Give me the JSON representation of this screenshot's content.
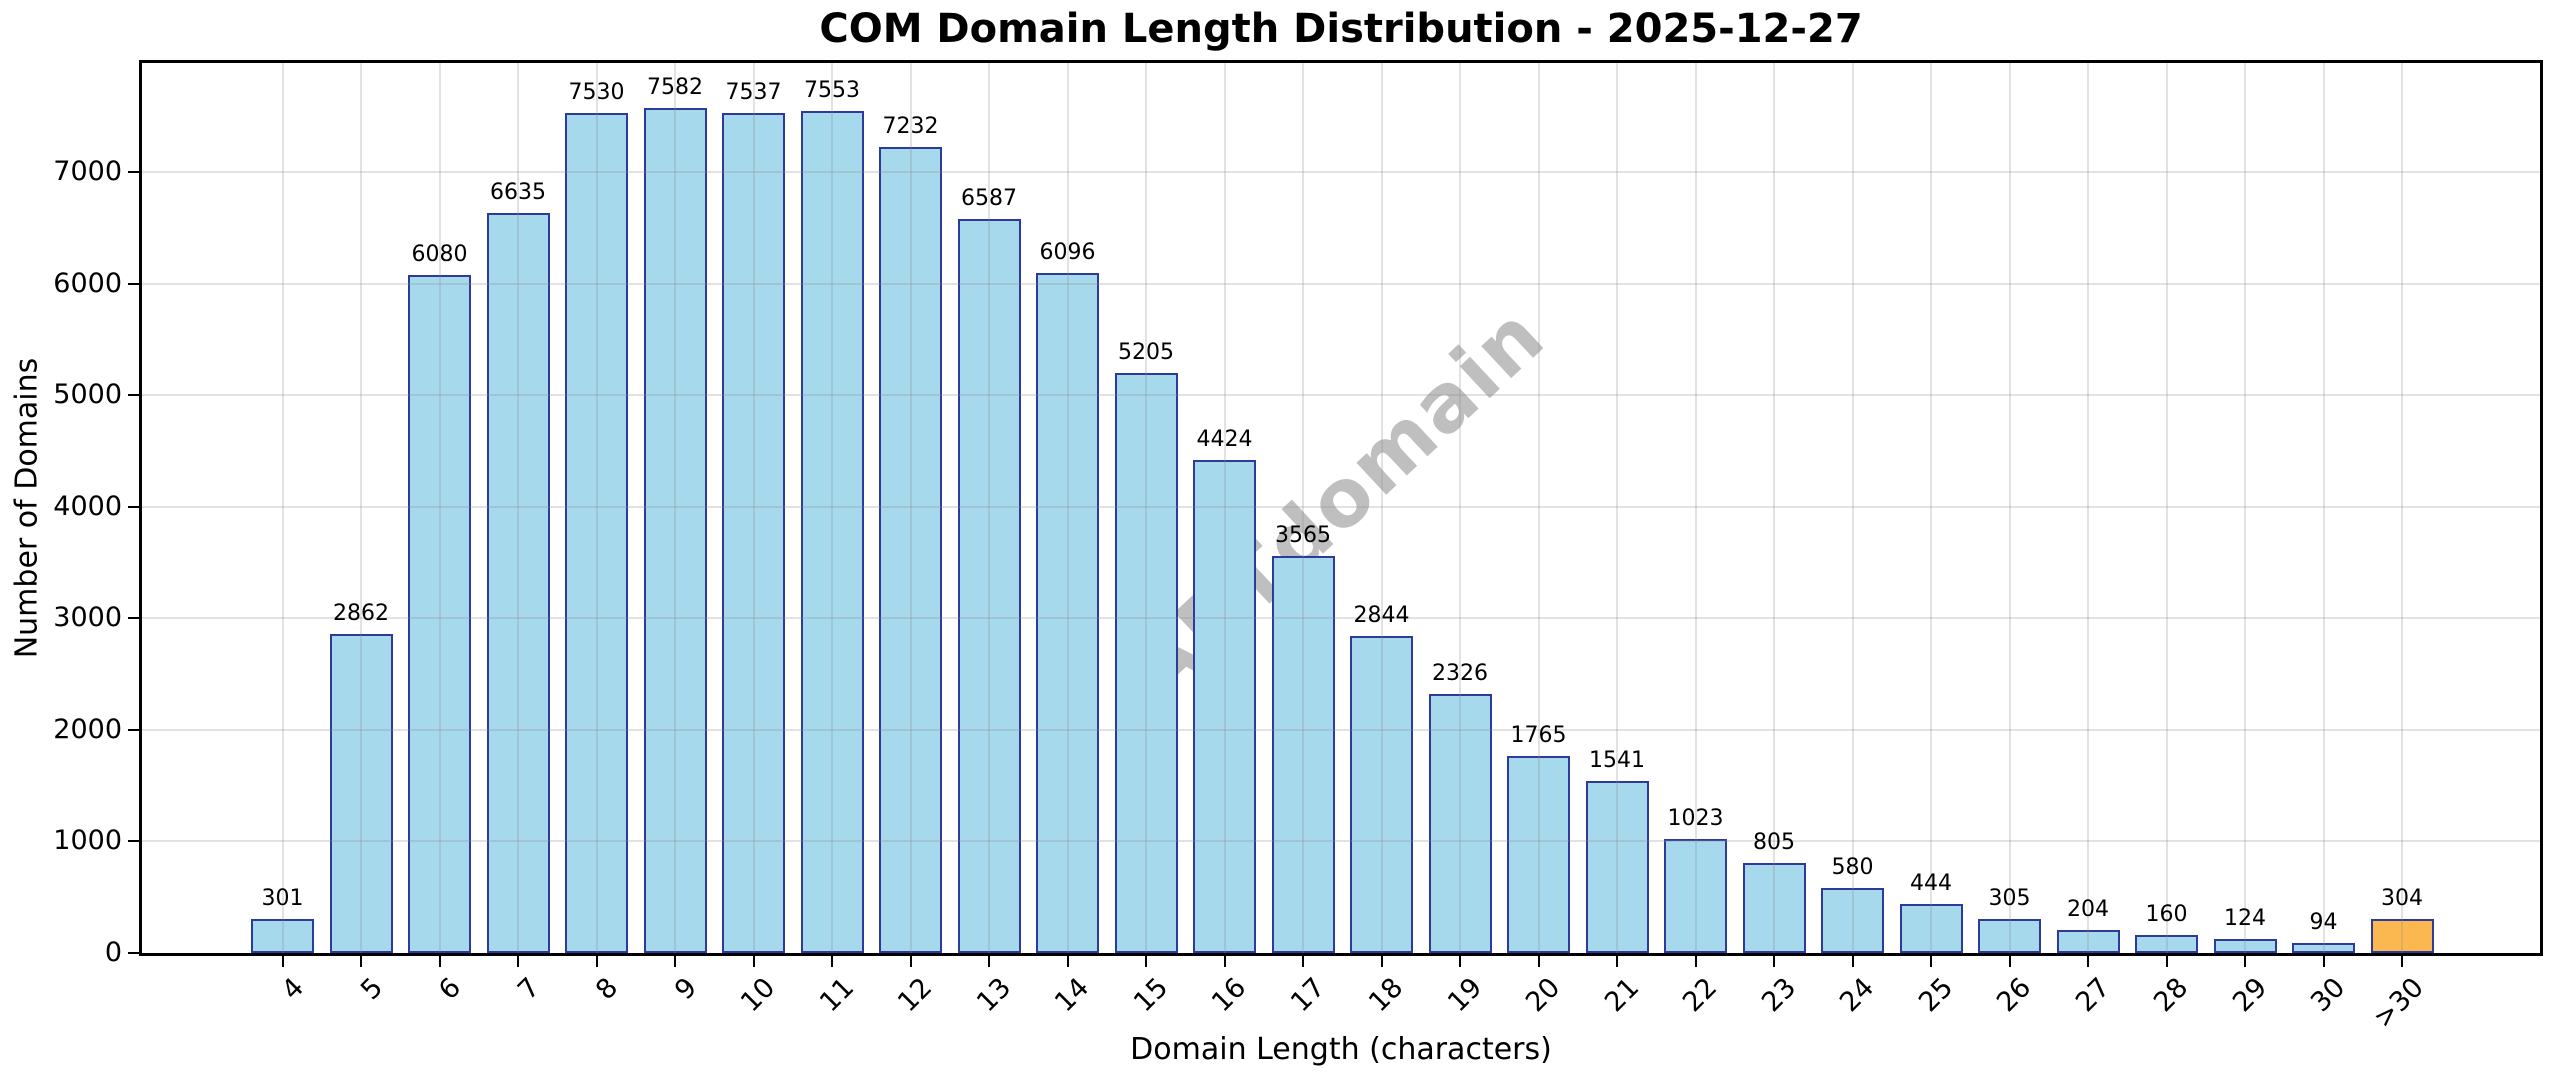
{
  "title": "COM Domain Length Distribution - 2025-12-27",
  "watermark": "ABTdomain",
  "chart_data": {
    "type": "bar",
    "title": "COM Domain Length Distribution - 2025-12-27",
    "xlabel": "Domain Length (characters)",
    "ylabel": "Number of Domains",
    "categories": [
      "4",
      "5",
      "6",
      "7",
      "8",
      "9",
      "10",
      "11",
      "12",
      "13",
      "14",
      "15",
      "16",
      "17",
      "18",
      "19",
      "20",
      "21",
      "22",
      "23",
      "24",
      "25",
      "26",
      "27",
      "28",
      "29",
      "30",
      ">30"
    ],
    "values": [
      301,
      2862,
      6080,
      6635,
      7530,
      7582,
      7537,
      7553,
      7232,
      6587,
      6096,
      5205,
      4424,
      3565,
      2844,
      2326,
      1765,
      1541,
      1023,
      805,
      580,
      444,
      305,
      204,
      160,
      124,
      94,
      304
    ],
    "ylim": [
      0,
      7982
    ],
    "yticks": [
      0,
      1000,
      2000,
      3000,
      4000,
      5000,
      6000,
      7000
    ],
    "grid": true,
    "legend": "none",
    "bar_color": "#a6d9ec",
    "bar_edge_color": "#2e3a99",
    "highlight_index": 27,
    "highlight_color": "#fcb850",
    "watermark_text": "ABTdomain",
    "watermark_color": "#afafaf"
  }
}
